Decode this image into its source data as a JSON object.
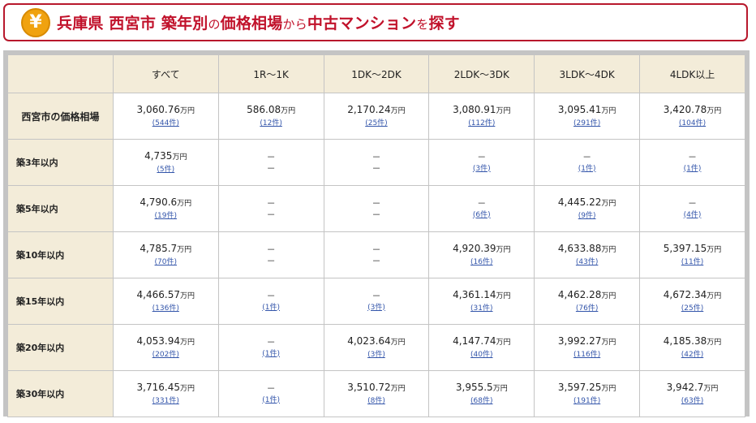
{
  "header": {
    "badge_glyph": "¥",
    "title_parts": [
      {
        "text": "兵庫県 西宮市 築年別",
        "small": false
      },
      {
        "text": "の",
        "small": true
      },
      {
        "text": "価格相場",
        "small": false
      },
      {
        "text": "から",
        "small": true
      },
      {
        "text": "中古マンション",
        "small": false
      },
      {
        "text": "を",
        "small": true
      },
      {
        "text": "探す",
        "small": false
      }
    ]
  },
  "table": {
    "columns": [
      "すべて",
      "1R～1K",
      "1DK～2DK",
      "2LDK～3DK",
      "3LDK～4DK",
      "4LDK以上"
    ],
    "unit": "万円",
    "rows": [
      {
        "label": "西宮市の価格相場",
        "market": true,
        "cells": [
          {
            "price": "3,060.76",
            "count": "544件"
          },
          {
            "price": "586.08",
            "count": "12件"
          },
          {
            "price": "2,170.24",
            "count": "25件"
          },
          {
            "price": "3,080.91",
            "count": "112件"
          },
          {
            "price": "3,095.41",
            "count": "291件"
          },
          {
            "price": "3,420.78",
            "count": "104件"
          }
        ]
      },
      {
        "label": "築3年以内",
        "cells": [
          {
            "price": "4,735",
            "count": "5件"
          },
          {
            "price": null,
            "count": null
          },
          {
            "price": null,
            "count": null
          },
          {
            "price": null,
            "count": "3件"
          },
          {
            "price": null,
            "count": "1件"
          },
          {
            "price": null,
            "count": "1件"
          }
        ]
      },
      {
        "label": "築5年以内",
        "cells": [
          {
            "price": "4,790.6",
            "count": "19件"
          },
          {
            "price": null,
            "count": null
          },
          {
            "price": null,
            "count": null
          },
          {
            "price": null,
            "count": "6件"
          },
          {
            "price": "4,445.22",
            "count": "9件"
          },
          {
            "price": null,
            "count": "4件"
          }
        ]
      },
      {
        "label": "築10年以内",
        "cells": [
          {
            "price": "4,785.7",
            "count": "70件"
          },
          {
            "price": null,
            "count": null
          },
          {
            "price": null,
            "count": null
          },
          {
            "price": "4,920.39",
            "count": "16件"
          },
          {
            "price": "4,633.88",
            "count": "43件"
          },
          {
            "price": "5,397.15",
            "count": "11件"
          }
        ]
      },
      {
        "label": "築15年以内",
        "cells": [
          {
            "price": "4,466.57",
            "count": "136件"
          },
          {
            "price": null,
            "count": "1件"
          },
          {
            "price": null,
            "count": "3件"
          },
          {
            "price": "4,361.14",
            "count": "31件"
          },
          {
            "price": "4,462.28",
            "count": "76件"
          },
          {
            "price": "4,672.34",
            "count": "25件"
          }
        ]
      },
      {
        "label": "築20年以内",
        "cells": [
          {
            "price": "4,053.94",
            "count": "202件"
          },
          {
            "price": null,
            "count": "1件"
          },
          {
            "price": "4,023.64",
            "count": "3件"
          },
          {
            "price": "4,147.74",
            "count": "40件"
          },
          {
            "price": "3,992.27",
            "count": "116件"
          },
          {
            "price": "4,185.38",
            "count": "42件"
          }
        ]
      },
      {
        "label": "築30年以内",
        "cells": [
          {
            "price": "3,716.45",
            "count": "331件"
          },
          {
            "price": null,
            "count": "1件"
          },
          {
            "price": "3,510.72",
            "count": "8件"
          },
          {
            "price": "3,955.5",
            "count": "68件"
          },
          {
            "price": "3,597.25",
            "count": "191件"
          },
          {
            "price": "3,942.7",
            "count": "63件"
          }
        ]
      }
    ],
    "dash": "－"
  },
  "colors": {
    "accent": "#c1122b",
    "header_cell": "#f3ecd9",
    "link": "#3355aa",
    "badge": "#f0a20f"
  }
}
